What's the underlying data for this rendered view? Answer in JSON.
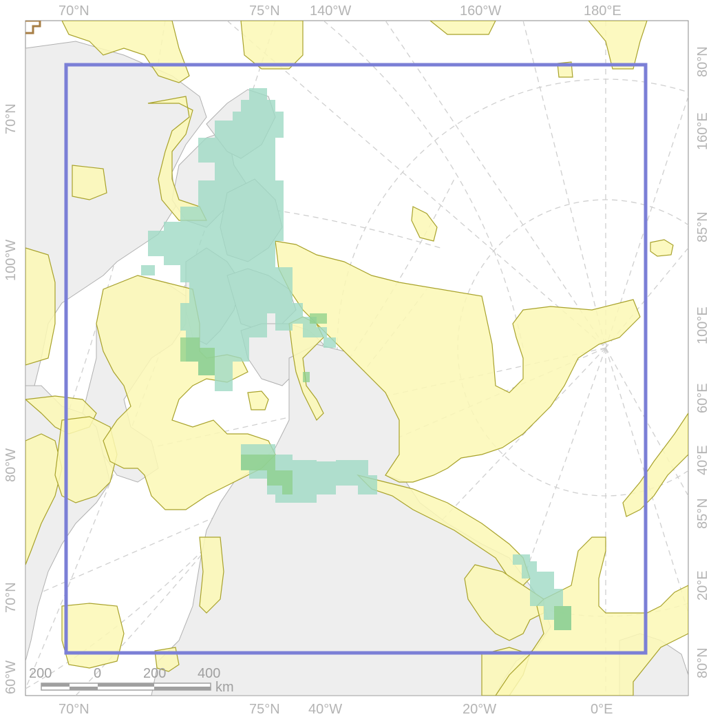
{
  "map": {
    "labels": {
      "top": [
        "70°N",
        "75°N",
        "140°W",
        "160°W",
        "180°E"
      ],
      "bottom": [
        "70°N",
        "75°N",
        "40°W",
        "20°W",
        "0°E"
      ],
      "left": [
        "70°N",
        "100°W",
        "80°W",
        "70°N",
        "60°W"
      ],
      "right": [
        "80°N",
        "160°E",
        "85°N",
        "100°E",
        "60°E",
        "40°E",
        "85°N",
        "20°E",
        "80°N"
      ]
    },
    "scale_bar": {
      "ticks": [
        "200",
        "0",
        "200",
        "400"
      ],
      "unit": "km"
    },
    "colors": {
      "land": "#eeeeee",
      "land_outline": "#b0b0b0",
      "protected_area_fill": "#fbf8b5",
      "protected_area_outline": "#a8a22b",
      "habitat_cells": "#9fd9c4",
      "habitat_overlap": "#8ccf8a",
      "extent_box": "#7b7fd6",
      "graticule": "#cfcfcf"
    }
  }
}
